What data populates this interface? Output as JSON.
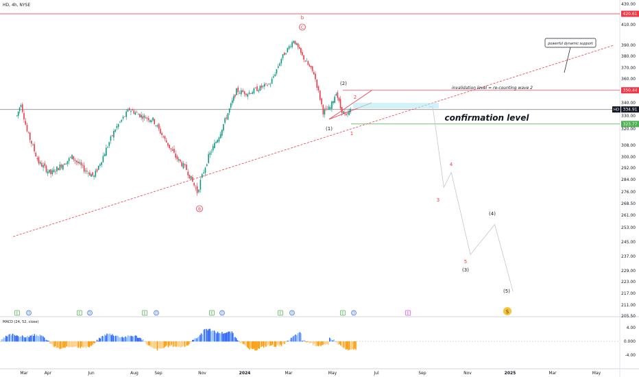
{
  "header": {
    "symbol": "HD, 4h, NYSE"
  },
  "macd_panel": {
    "label": "MACD (24, 52, close)",
    "ticks": [
      "4.00",
      "0.000",
      "-4.00"
    ]
  },
  "y_axis_ticks": [
    "430.00",
    "410.00",
    "390.00",
    "380.00",
    "370.00",
    "360.00",
    "340.00",
    "330.00",
    "320.00",
    "308.00",
    "300.00",
    "292.00",
    "284.00",
    "276.00",
    "268.50",
    "261.00",
    "253.00",
    "245.00",
    "237.00",
    "229.00",
    "223.00",
    "217.00",
    "211.00",
    "205.50"
  ],
  "price_badges": [
    {
      "label": "420.61",
      "color": "#f23645"
    },
    {
      "label": "350.44",
      "color": "#f23645"
    },
    {
      "label": "334.91",
      "color": "#131722",
      "prefix": "HD"
    },
    {
      "label": "323.77",
      "color": "#4caf50"
    }
  ],
  "x_axis_ticks": [
    "Mar",
    "Apr",
    "Jun",
    "Aug",
    "Sep",
    "Nov",
    "2024",
    "Mar",
    "May",
    "Jul",
    "Sep",
    "Nov",
    "2025",
    "Mar",
    "May"
  ],
  "annotations": {
    "invalidation": "invalidation level = re-counting wave 2",
    "confirmation": "confirmation level",
    "dynamic_support": "powerful dynamic support"
  },
  "wave_labels": [
    {
      "text": "b",
      "color": "#f23645"
    },
    {
      "text": "C",
      "color": "#f23645",
      "circled": true
    },
    {
      "text": "B",
      "color": "#f23645",
      "circled": true
    },
    {
      "text": "(1)",
      "color": "#131722"
    },
    {
      "text": "(2)",
      "color": "#131722"
    },
    {
      "text": "1",
      "color": "#f23645"
    },
    {
      "text": "2",
      "color": "#f23645"
    },
    {
      "text": "3",
      "color": "#f23645"
    },
    {
      "text": "4",
      "color": "#f23645"
    },
    {
      "text": "5",
      "color": "#f23645"
    },
    {
      "text": "(3)",
      "color": "#131722"
    },
    {
      "text": "(4)",
      "color": "#131722"
    },
    {
      "text": "(5)",
      "color": "#131722"
    }
  ],
  "event_markers": [
    "E",
    "D",
    "E",
    "D",
    "E",
    "D",
    "E",
    "D",
    "E",
    "D",
    "E",
    "D",
    "E"
  ],
  "chart_data": {
    "type": "candlestick",
    "title": "HD, 4h, NYSE",
    "ylim": [
      205.5,
      430
    ],
    "x_range": [
      "2023-03",
      "2025-05"
    ],
    "price_path": [
      {
        "date": "2023-02-20",
        "price": 330
      },
      {
        "date": "2023-02-25",
        "price": 340
      },
      {
        "date": "2023-03-05",
        "price": 318
      },
      {
        "date": "2023-03-20",
        "price": 296
      },
      {
        "date": "2023-04-05",
        "price": 288
      },
      {
        "date": "2023-04-20",
        "price": 294
      },
      {
        "date": "2023-05-05",
        "price": 300
      },
      {
        "date": "2023-05-20",
        "price": 292
      },
      {
        "date": "2023-06-05",
        "price": 286
      },
      {
        "date": "2023-06-20",
        "price": 303
      },
      {
        "date": "2023-07-05",
        "price": 320
      },
      {
        "date": "2023-07-25",
        "price": 335
      },
      {
        "date": "2023-08-10",
        "price": 330
      },
      {
        "date": "2023-08-25",
        "price": 327
      },
      {
        "date": "2023-09-10",
        "price": 312
      },
      {
        "date": "2023-09-25",
        "price": 300
      },
      {
        "date": "2023-10-10",
        "price": 291
      },
      {
        "date": "2023-10-25",
        "price": 276
      },
      {
        "date": "2023-11-10",
        "price": 300
      },
      {
        "date": "2023-11-25",
        "price": 315
      },
      {
        "date": "2023-12-10",
        "price": 335
      },
      {
        "date": "2023-12-20",
        "price": 350
      },
      {
        "date": "2024-01-05",
        "price": 348
      },
      {
        "date": "2024-01-20",
        "price": 352
      },
      {
        "date": "2024-02-05",
        "price": 356
      },
      {
        "date": "2024-02-20",
        "price": 378
      },
      {
        "date": "2024-03-08",
        "price": 395
      },
      {
        "date": "2024-03-20",
        "price": 380
      },
      {
        "date": "2024-04-05",
        "price": 365
      },
      {
        "date": "2024-04-18",
        "price": 333
      },
      {
        "date": "2024-04-28",
        "price": 336
      },
      {
        "date": "2024-05-06",
        "price": 349
      },
      {
        "date": "2024-05-12",
        "price": 336
      },
      {
        "date": "2024-05-20",
        "price": 329
      },
      {
        "date": "2024-05-26",
        "price": 334.91
      }
    ],
    "projection": [
      {
        "label": "",
        "date": "2024-09-15",
        "price": 337
      },
      {
        "label": "3",
        "date": "2024-09-30",
        "price": 279
      },
      {
        "label": "4",
        "date": "2024-10-10",
        "price": 289
      },
      {
        "label": "5",
        "date": "2024-11-05",
        "price": 238
      },
      {
        "label": "(4)",
        "date": "2024-12-10",
        "price": 255
      },
      {
        "label": "(5)",
        "date": "2025-01-05",
        "price": 218
      }
    ],
    "levels": [
      {
        "name": "high",
        "value": 420.61,
        "color": "#f23645"
      },
      {
        "name": "invalidation",
        "value": 350.44,
        "color": "#f23645"
      },
      {
        "name": "last",
        "value": 334.91,
        "color": "#131722"
      },
      {
        "name": "confirmation",
        "value": 323.77,
        "color": "#4caf50"
      }
    ],
    "trendline": {
      "from": {
        "date": "2023-02-15",
        "price": 248
      },
      "to": {
        "date": "2025-05-25",
        "price": 390
      },
      "style": "dashed",
      "color": "#f23645"
    },
    "macd": {
      "label": "MACD (24, 52, close)",
      "ylim": [
        -6,
        6
      ]
    }
  }
}
